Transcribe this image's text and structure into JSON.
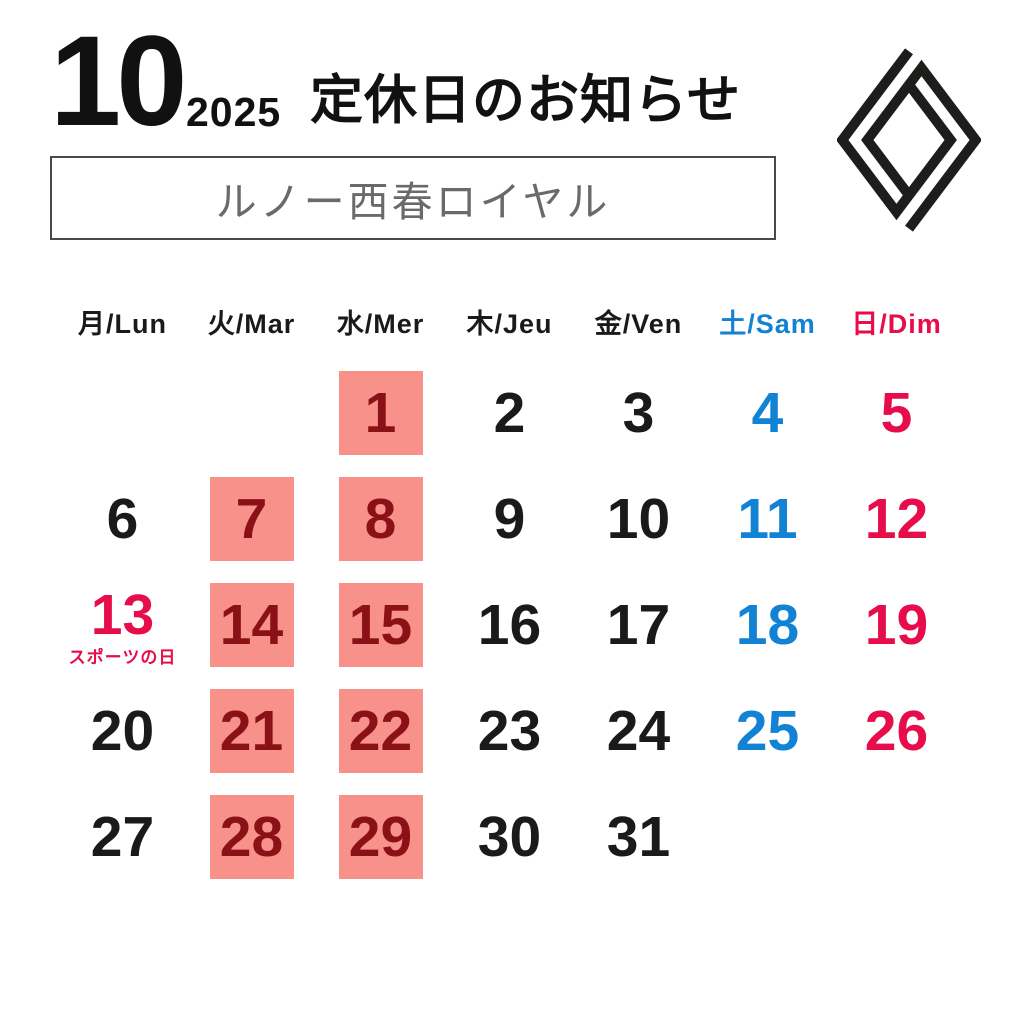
{
  "header": {
    "month": "10",
    "year": "2025",
    "title": "定休日のお知らせ"
  },
  "dealer": {
    "name": "ルノー西春ロイヤル"
  },
  "logo": {
    "brand": "renault-diamond"
  },
  "colors": {
    "weekday_text": "#1a1a1a",
    "saturday": "#1282d4",
    "sunday": "#e60d4a",
    "closed_bg": "#f8918a",
    "closed_text": "#8a1115",
    "logo_black": "#1d1d1b"
  },
  "calendar": {
    "day_headers": [
      {
        "label": "月/Lun",
        "type": "weekday"
      },
      {
        "label": "火/Mar",
        "type": "weekday"
      },
      {
        "label": "水/Mer",
        "type": "weekday"
      },
      {
        "label": "木/Jeu",
        "type": "weekday"
      },
      {
        "label": "金/Ven",
        "type": "weekday"
      },
      {
        "label": "土/Sam",
        "type": "sat"
      },
      {
        "label": "日/Dim",
        "type": "sun"
      }
    ],
    "weeks": [
      [
        {
          "day": "",
          "type": "empty"
        },
        {
          "day": "",
          "type": "empty"
        },
        {
          "day": "1",
          "type": "closed"
        },
        {
          "day": "2",
          "type": "normal"
        },
        {
          "day": "3",
          "type": "normal"
        },
        {
          "day": "4",
          "type": "sat"
        },
        {
          "day": "5",
          "type": "sun"
        }
      ],
      [
        {
          "day": "6",
          "type": "normal"
        },
        {
          "day": "7",
          "type": "closed"
        },
        {
          "day": "8",
          "type": "closed"
        },
        {
          "day": "9",
          "type": "normal"
        },
        {
          "day": "10",
          "type": "normal"
        },
        {
          "day": "11",
          "type": "sat"
        },
        {
          "day": "12",
          "type": "sun"
        }
      ],
      [
        {
          "day": "13",
          "type": "holiday",
          "note": "スポーツの日"
        },
        {
          "day": "14",
          "type": "closed"
        },
        {
          "day": "15",
          "type": "closed"
        },
        {
          "day": "16",
          "type": "normal"
        },
        {
          "day": "17",
          "type": "normal"
        },
        {
          "day": "18",
          "type": "sat"
        },
        {
          "day": "19",
          "type": "sun"
        }
      ],
      [
        {
          "day": "20",
          "type": "normal"
        },
        {
          "day": "21",
          "type": "closed"
        },
        {
          "day": "22",
          "type": "closed"
        },
        {
          "day": "23",
          "type": "normal"
        },
        {
          "day": "24",
          "type": "normal"
        },
        {
          "day": "25",
          "type": "sat"
        },
        {
          "day": "26",
          "type": "sun"
        }
      ],
      [
        {
          "day": "27",
          "type": "normal"
        },
        {
          "day": "28",
          "type": "closed"
        },
        {
          "day": "29",
          "type": "closed"
        },
        {
          "day": "30",
          "type": "normal"
        },
        {
          "day": "31",
          "type": "normal"
        },
        {
          "day": "",
          "type": "empty"
        },
        {
          "day": "",
          "type": "empty"
        }
      ]
    ]
  }
}
